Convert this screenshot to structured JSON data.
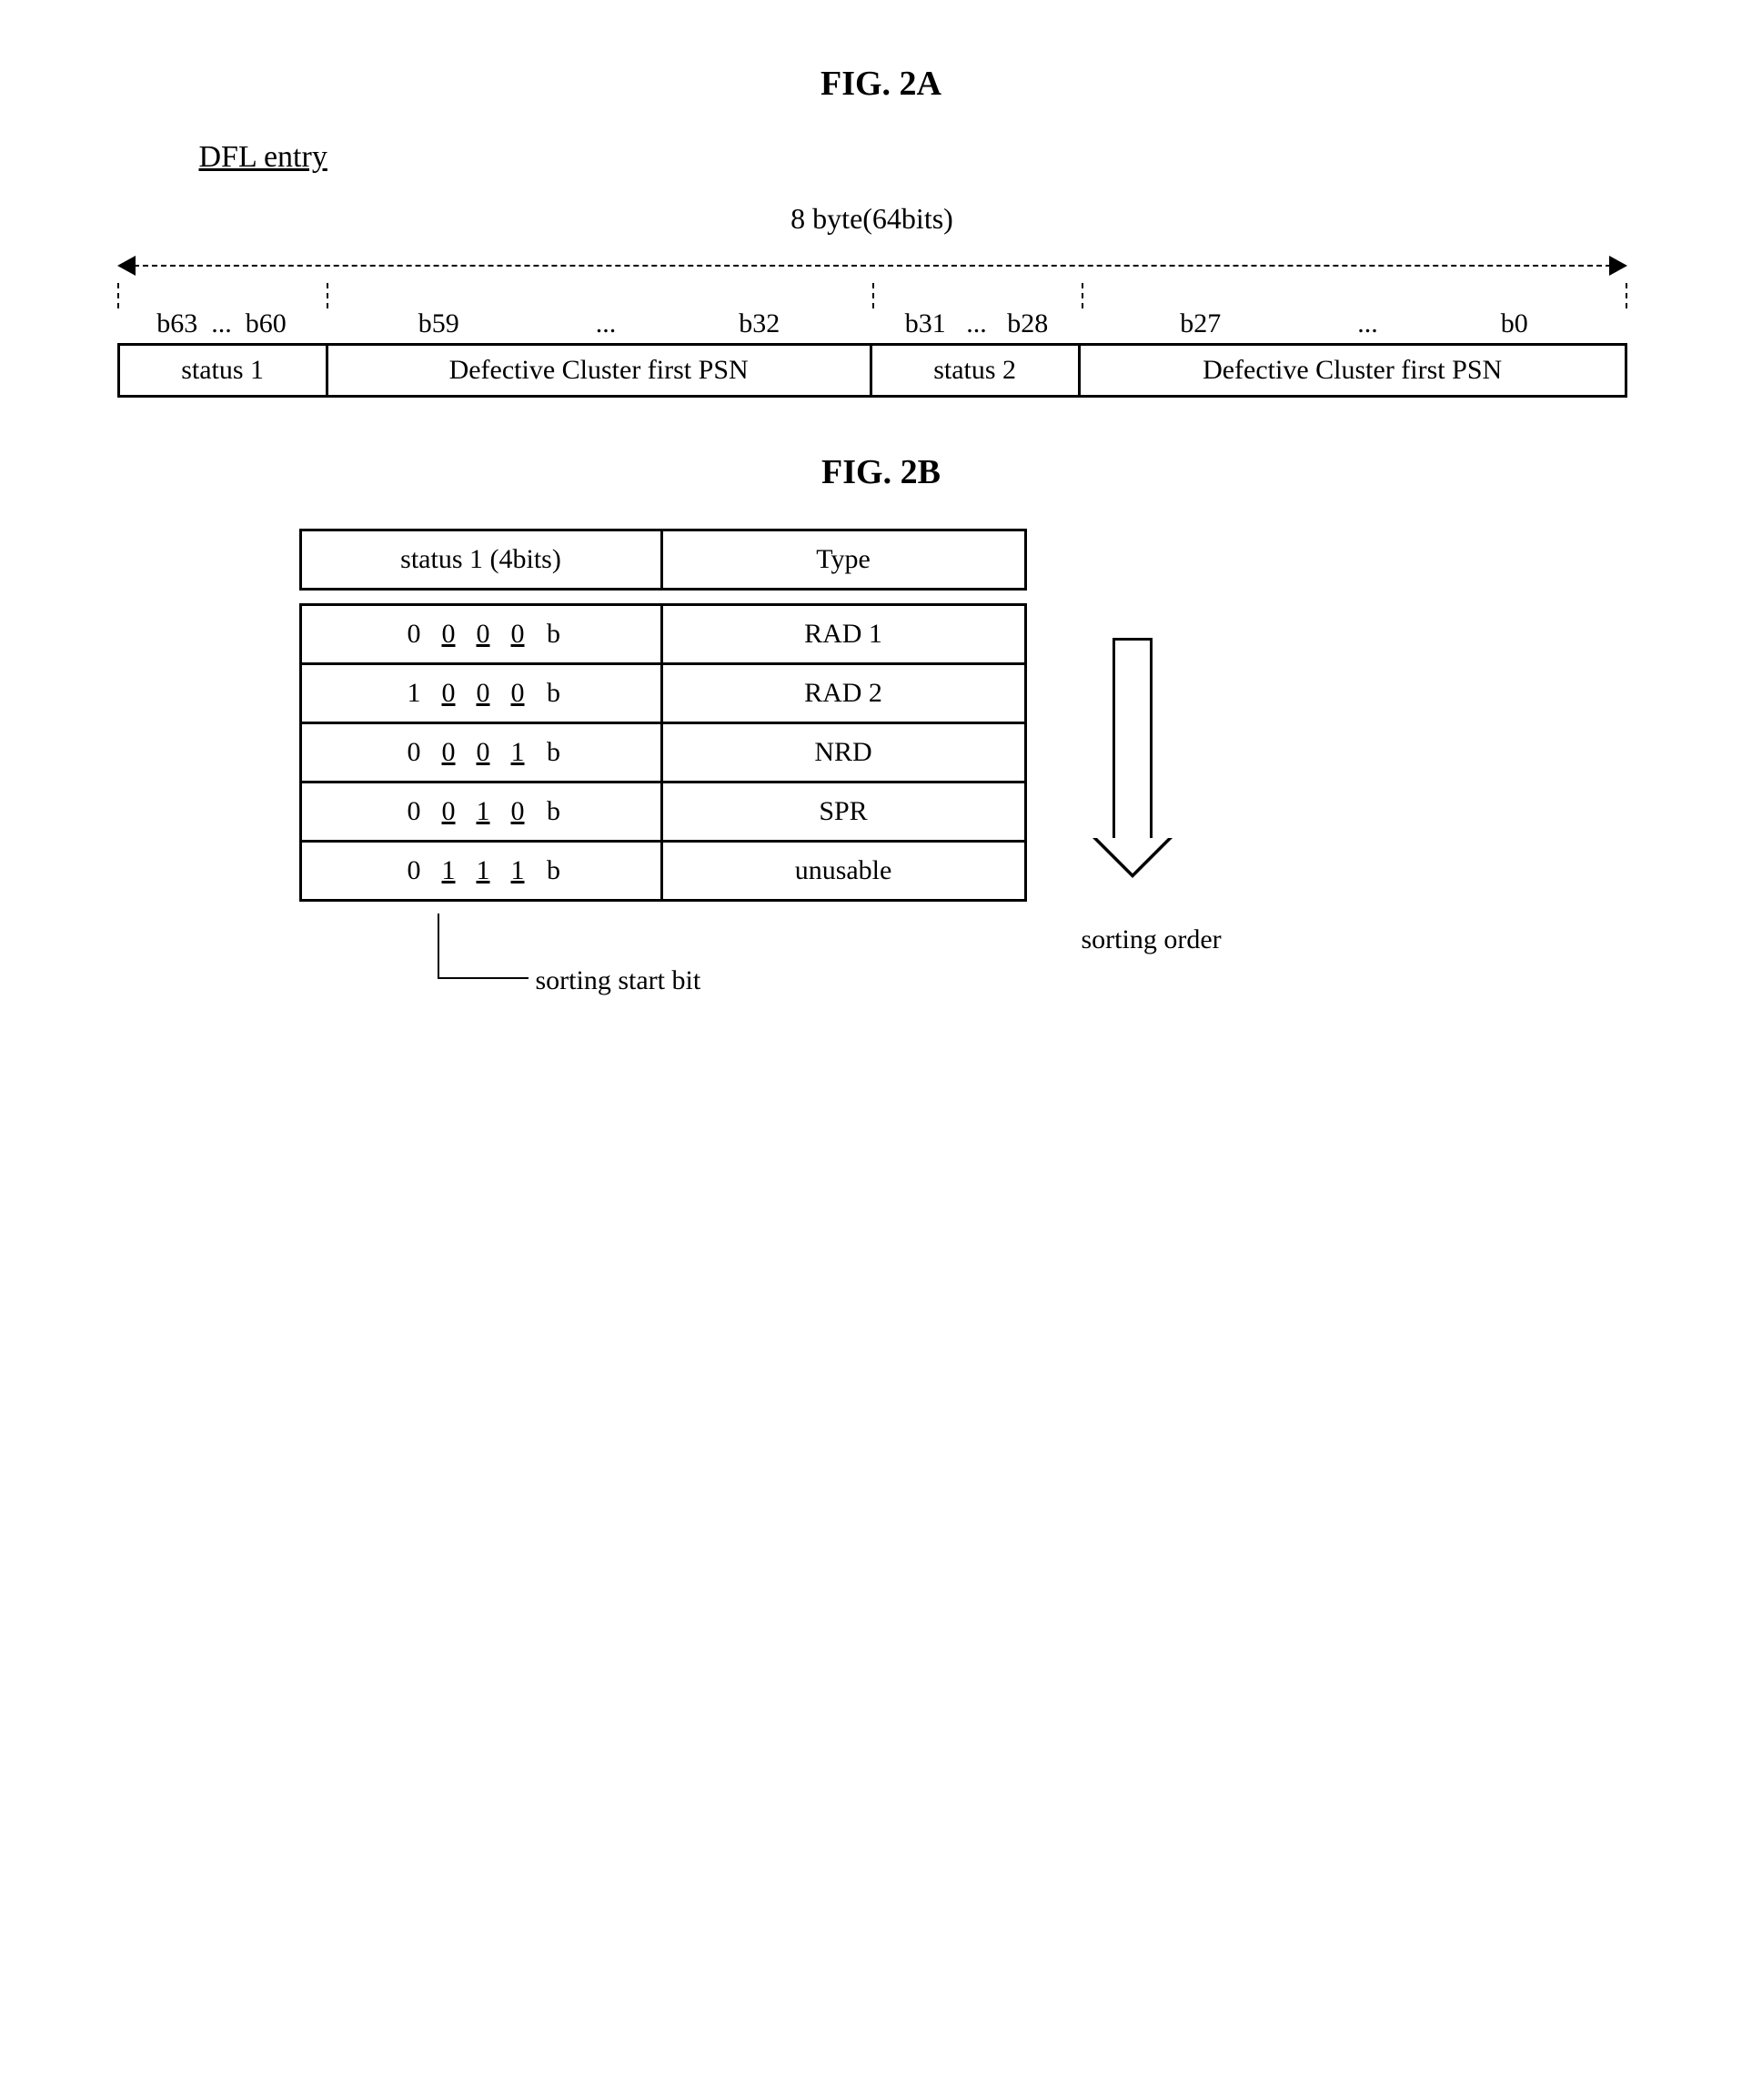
{
  "fig2a": {
    "title": "FIG. 2A",
    "subtitle": "DFL entry",
    "byte_label": "8 byte(64bits)",
    "bit_labels": {
      "s1": "b63  ...  b60",
      "c1": "b59                    ...                  b32",
      "s2": "b31   ...   b28",
      "c2": "b27                    ...                  b0"
    },
    "cells": {
      "status1": "status 1",
      "cluster1": "Defective Cluster first PSN",
      "status2": "status 2",
      "cluster2": "Defective Cluster first PSN"
    },
    "col_widths": {
      "status1": 230,
      "cluster1": 600,
      "status2": 230,
      "cluster2": 600
    }
  },
  "fig2b": {
    "title": "FIG. 2B",
    "header": {
      "status": "status 1 (4bits)",
      "type": "Type"
    },
    "rows": [
      {
        "bits": [
          "0",
          "0",
          "0",
          "0"
        ],
        "underline_from": 1,
        "type": "RAD 1"
      },
      {
        "bits": [
          "1",
          "0",
          "0",
          "0"
        ],
        "underline_from": 1,
        "type": "RAD 2"
      },
      {
        "bits": [
          "0",
          "0",
          "0",
          "1"
        ],
        "underline_from": 1,
        "type": "NRD"
      },
      {
        "bits": [
          "0",
          "0",
          "1",
          "0"
        ],
        "underline_from": 1,
        "type": "SPR"
      },
      {
        "bits": [
          "0",
          "1",
          "1",
          "1"
        ],
        "underline_from": 1,
        "type": "unusable"
      }
    ],
    "sorting_order_label": "sorting order",
    "sorting_start_bit_label": "sorting start bit"
  }
}
